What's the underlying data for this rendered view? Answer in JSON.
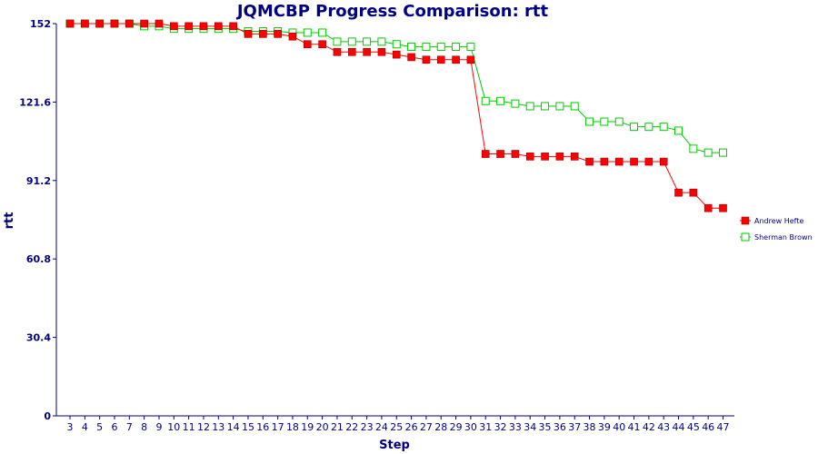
{
  "chart_data": {
    "type": "line",
    "title": "JQMCBP Progress Comparison: rtt",
    "xlabel": "Step",
    "ylabel": "rtt",
    "ylim": [
      0,
      152
    ],
    "yticks": [
      "0",
      "30.4",
      "60.8",
      "91.2",
      "121.6",
      "152"
    ],
    "grid": false,
    "legend_position": "right",
    "x": [
      3,
      4,
      5,
      6,
      7,
      8,
      9,
      10,
      11,
      12,
      13,
      14,
      15,
      16,
      17,
      18,
      19,
      20,
      21,
      22,
      23,
      24,
      25,
      26,
      27,
      28,
      29,
      30,
      31,
      32,
      33,
      34,
      35,
      36,
      37,
      38,
      39,
      40,
      41,
      42,
      43,
      44,
      45,
      46,
      47
    ],
    "series": [
      {
        "name": "Andrew Hefte",
        "color": "#ff0000",
        "marker": "filled-square",
        "values": [
          152,
          152,
          152,
          152,
          152,
          152,
          152,
          151,
          151,
          151,
          151,
          151,
          148,
          148,
          148,
          147,
          144,
          144,
          141,
          141,
          141,
          141,
          140,
          139,
          138,
          138,
          138,
          138,
          101.5,
          101.5,
          101.5,
          100.5,
          100.5,
          100.5,
          100.5,
          98.5,
          98.5,
          98.5,
          98.5,
          98.5,
          98.5,
          86.5,
          86.5,
          80.5,
          80.5
        ]
      },
      {
        "name": "Sherman Brown",
        "color": "#00cc00",
        "marker": "hollow-square",
        "values": [
          152,
          152,
          152,
          152,
          152,
          151,
          151,
          150,
          150,
          150,
          150,
          150,
          149,
          149,
          149,
          148.5,
          148.5,
          148.5,
          145,
          145,
          145,
          145,
          144,
          143,
          143,
          143,
          143,
          143,
          122,
          122,
          121,
          120,
          120,
          120,
          120,
          114,
          114,
          114,
          112,
          112,
          112,
          110.5,
          103.5,
          102,
          102
        ]
      }
    ]
  }
}
